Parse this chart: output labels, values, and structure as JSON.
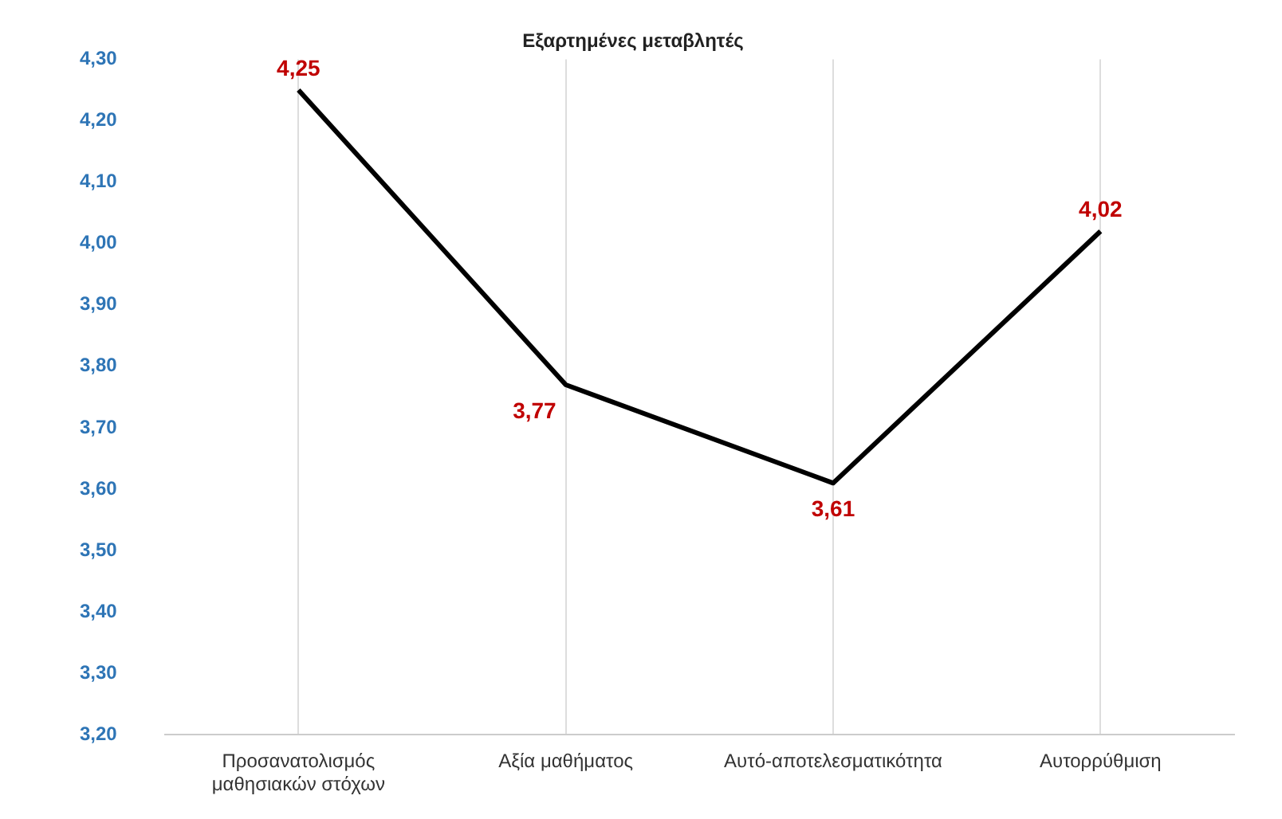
{
  "chart_data": {
    "type": "line",
    "title": "Εξαρτημένες μεταβλητές",
    "categories": [
      "Προσανατολισμός μαθησιακών στόχων",
      "Αξία μαθήματος",
      "Αυτό-αποτελεσματικότητα",
      "Αυτορρύθμιση"
    ],
    "series": [
      {
        "color": "#000000",
        "values": [
          4.25,
          3.77,
          3.61,
          4.02
        ],
        "value_labels": [
          "4,25",
          "3,77",
          "3,61",
          "4,02"
        ]
      }
    ],
    "ylim": [
      3.2,
      4.3
    ],
    "yticks": [
      {
        "value": 3.2,
        "label": "3,20"
      },
      {
        "value": 3.3,
        "label": "3,30"
      },
      {
        "value": 3.4,
        "label": "3,40"
      },
      {
        "value": 3.5,
        "label": "3,50"
      },
      {
        "value": 3.6,
        "label": "3,60"
      },
      {
        "value": 3.7,
        "label": "3,70"
      },
      {
        "value": 3.8,
        "label": "3,80"
      },
      {
        "value": 3.9,
        "label": "3,90"
      },
      {
        "value": 4.0,
        "label": "4,00"
      },
      {
        "value": 4.1,
        "label": "4,10"
      },
      {
        "value": 4.2,
        "label": "4,20"
      },
      {
        "value": 4.3,
        "label": "4,30"
      }
    ],
    "grid": "x",
    "legend": false,
    "marker": "none",
    "line_style": "solid"
  }
}
